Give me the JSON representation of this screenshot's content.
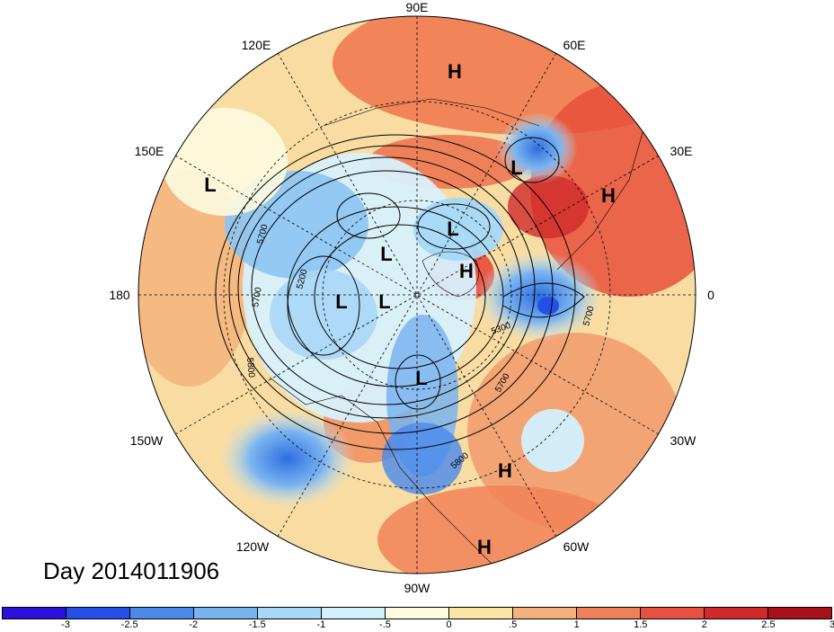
{
  "title": "Day 2014011906",
  "longitude_labels": [
    "90E",
    "60E",
    "30E",
    "0",
    "30W",
    "60W",
    "90W",
    "120W",
    "150W",
    "180",
    "150E",
    "120E"
  ],
  "centers": [
    {
      "type": "H",
      "name": "high-center-eurasia-north"
    },
    {
      "type": "L",
      "name": "low-center-scandinavia"
    },
    {
      "type": "H",
      "name": "high-center-russia"
    },
    {
      "type": "L",
      "name": "low-center-pacific-west"
    },
    {
      "type": "L",
      "name": "low-center-arctic-a"
    },
    {
      "type": "H",
      "name": "high-center-greenland"
    },
    {
      "type": "L",
      "name": "low-center-arctic-b"
    },
    {
      "type": "L",
      "name": "low-center-bering"
    },
    {
      "type": "L",
      "name": "low-center-arctic-c"
    },
    {
      "type": "L",
      "name": "low-center-hudson"
    },
    {
      "type": "H",
      "name": "high-center-atlantic"
    },
    {
      "type": "H",
      "name": "high-center-caribbean"
    }
  ],
  "contour_labels": [
    "5700",
    "5200",
    "5700",
    "5800",
    "5300",
    "5700",
    "5700",
    "5800"
  ],
  "colorbar": {
    "colors": [
      "#2a10d8",
      "#2450e8",
      "#4a88ec",
      "#78b4f0",
      "#a6d8f8",
      "#d2f0fc",
      "#fdfbe0",
      "#fbe4a4",
      "#f6b07c",
      "#f08058",
      "#e85040",
      "#d02a2a",
      "#a8101c"
    ],
    "ticks": [
      "-3",
      "-2.5",
      "-2",
      "-1.5",
      "-1",
      "-.5",
      "0",
      ".5",
      "1",
      "1.5",
      "2",
      "2.5",
      "3"
    ]
  }
}
